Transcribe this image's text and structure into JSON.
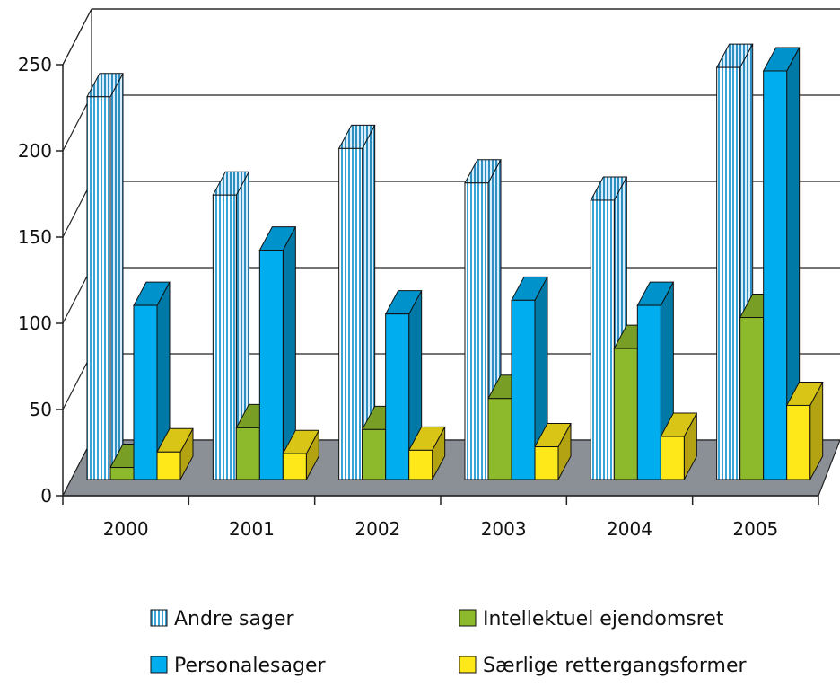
{
  "chart_data": {
    "type": "bar",
    "style": "3d-clustered-columns",
    "categories": [
      "2000",
      "2001",
      "2002",
      "2003",
      "2004",
      "2005"
    ],
    "series": [
      {
        "name": "Andre sager",
        "values": [
          222,
          165,
          192,
          172,
          162,
          239
        ],
        "color": "#9fd3f2",
        "pattern": "vertical-stripes"
      },
      {
        "name": "Intellektuel ejendomsret",
        "values": [
          7,
          30,
          29,
          47,
          76,
          94
        ],
        "color": "#8dba2d"
      },
      {
        "name": "Personalesager",
        "values": [
          101,
          133,
          96,
          104,
          101,
          237
        ],
        "color": "#00adef"
      },
      {
        "name": "Særlige rettergangsformer",
        "values": [
          16,
          15,
          17,
          19,
          25,
          43
        ],
        "color": "#ffe81a"
      }
    ],
    "y_ticks": [
      "0",
      "50",
      "100",
      "150",
      "200",
      "250"
    ],
    "ylim": [
      0,
      250
    ],
    "grid": true,
    "floor_color": "#8b9097",
    "legend_position": "bottom"
  }
}
